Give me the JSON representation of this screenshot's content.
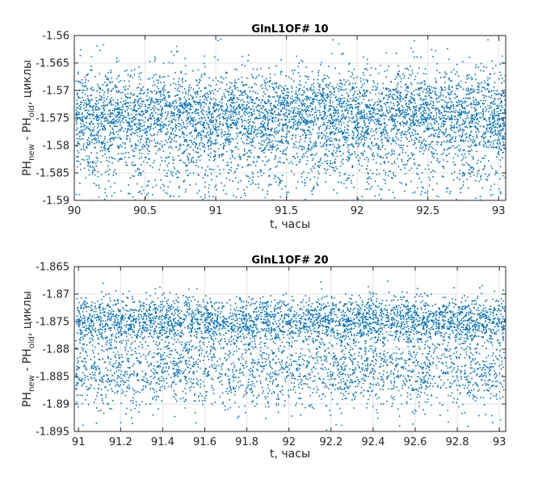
{
  "chart_data": [
    {
      "type": "scatter",
      "title": "GlnL1OF# 10",
      "xlabel": "t, часы",
      "ylabel": {
        "prefix": "PH",
        "sub1": "new",
        "mid": " - PH",
        "sub2": "old",
        "suffix": ", циклы"
      },
      "xlim": [
        90,
        93.05
      ],
      "ylim": [
        -1.59,
        -1.56
      ],
      "xticks": [
        90,
        90.5,
        91,
        91.5,
        92,
        92.5,
        93
      ],
      "xtick_labels": [
        "90",
        "90.5",
        "91",
        "91.5",
        "92",
        "92.5",
        "93"
      ],
      "yticks": [
        -1.56,
        -1.565,
        -1.57,
        -1.575,
        -1.58,
        -1.585,
        -1.59
      ],
      "ytick_labels": [
        "-1.56",
        "-1.565",
        "-1.57",
        "-1.575",
        "-1.58",
        "-1.585",
        "-1.59"
      ],
      "grid": true,
      "color": "#0072BD",
      "series": [
        {
          "approx": {
            "points": 6000,
            "bands": [
              {
                "center": -1.5738,
                "spread": 0.0035,
                "weight": 0.55
              },
              {
                "center": -1.579,
                "spread": 0.0065,
                "weight": 0.45
              }
            ]
          }
        }
      ]
    },
    {
      "type": "scatter",
      "title": "GlnL1OF# 20",
      "xlabel": "t, часы",
      "ylabel": {
        "prefix": "PH",
        "sub1": "new",
        "mid": " - PH",
        "sub2": "old",
        "suffix": ", циклы"
      },
      "xlim": [
        90.98,
        93.03
      ],
      "ylim": [
        -1.895,
        -1.865
      ],
      "xticks": [
        91,
        91.2,
        91.4,
        91.6,
        91.8,
        92,
        92.2,
        92.4,
        92.6,
        92.8,
        93
      ],
      "xtick_labels": [
        "91",
        "91.2",
        "91.4",
        "91.6",
        "91.8",
        "92",
        "92.2",
        "92.4",
        "92.6",
        "92.8",
        "93"
      ],
      "yticks": [
        -1.865,
        -1.87,
        -1.875,
        -1.88,
        -1.885,
        -1.89,
        -1.895
      ],
      "ytick_labels": [
        "-1.865",
        "-1.87",
        "-1.875",
        "-1.88",
        "-1.885",
        "-1.89",
        "-1.895"
      ],
      "grid": true,
      "color": "#0072BD",
      "series": [
        {
          "approx": {
            "points": 5500,
            "bands": [
              {
                "center": -1.8747,
                "spread": 0.0022,
                "weight": 0.6
              },
              {
                "center": -1.884,
                "spread": 0.0035,
                "weight": 0.4
              }
            ]
          }
        }
      ]
    }
  ]
}
